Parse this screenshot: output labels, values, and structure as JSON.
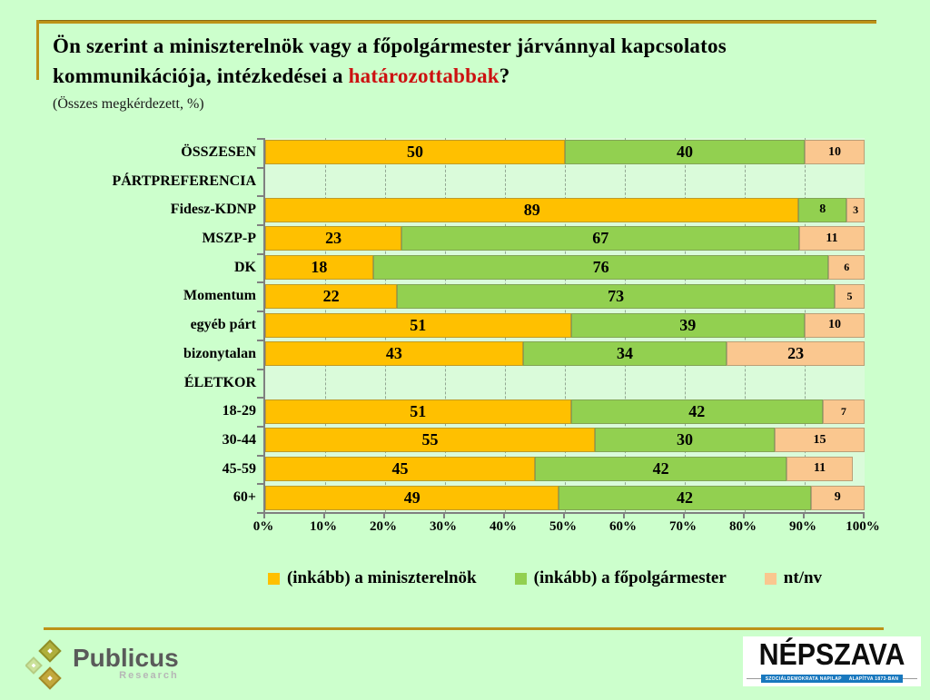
{
  "slide": {
    "title_line1": "Ön szerint a miniszterelnök vagy a főpolgármester járvánnyal kapcsolatos",
    "title_line2_prefix": "kommunikációja, intézkedései a ",
    "title_highlight": "határozottabbak",
    "title_line2_suffix": "?",
    "subtitle": "(Összes megkérdezett, %)"
  },
  "chart_data": {
    "type": "bar",
    "orientation": "horizontal",
    "stacked": true,
    "unit": "%",
    "xlim": [
      0,
      100
    ],
    "x_ticks": [
      "0%",
      "10%",
      "20%",
      "30%",
      "40%",
      "50%",
      "60%",
      "70%",
      "80%",
      "90%",
      "100%"
    ],
    "grid": "vertical-dashed",
    "legend_position": "bottom",
    "categories": [
      "ÖSSZESEN",
      "PÁRTPREFERENCIA",
      "Fidesz-KDNP",
      "MSZP-P",
      "DK",
      "Momentum",
      "egyéb párt",
      "bizonytalan",
      "ÉLETKOR",
      "18-29",
      "30-44",
      "45-59",
      "60+"
    ],
    "section_header_indices": [
      1,
      8
    ],
    "series": [
      {
        "name": "(inkább) a miniszterelnök",
        "color": "#FFC000",
        "values": [
          50,
          null,
          89,
          23,
          18,
          22,
          51,
          43,
          null,
          51,
          55,
          45,
          49
        ]
      },
      {
        "name": "(inkább) a főpolgármester",
        "color": "#92D050",
        "values": [
          40,
          null,
          8,
          67,
          76,
          73,
          39,
          34,
          null,
          42,
          30,
          42,
          42
        ]
      },
      {
        "name": "nt/nv",
        "color": "#FAC78F",
        "values": [
          10,
          null,
          3,
          11,
          6,
          5,
          10,
          23,
          null,
          7,
          15,
          11,
          9
        ]
      }
    ]
  },
  "footer": {
    "publicus_name": "Publicus",
    "publicus_sub": "Research",
    "nepszava_name": "NÉPSZAVA",
    "nepszava_tagline_left": "SZOCIÁLDEMOKRATA NAPILAP",
    "nepszava_tagline_right": "ALAPÍTVA 1873-BAN"
  },
  "colors": {
    "background": "#CCFFCC",
    "plot_background": "#DAFBDA",
    "accent_line": "#BD9217",
    "title_highlight": "#CC1111",
    "axis": "#808080",
    "gridline": "#93A893"
  }
}
